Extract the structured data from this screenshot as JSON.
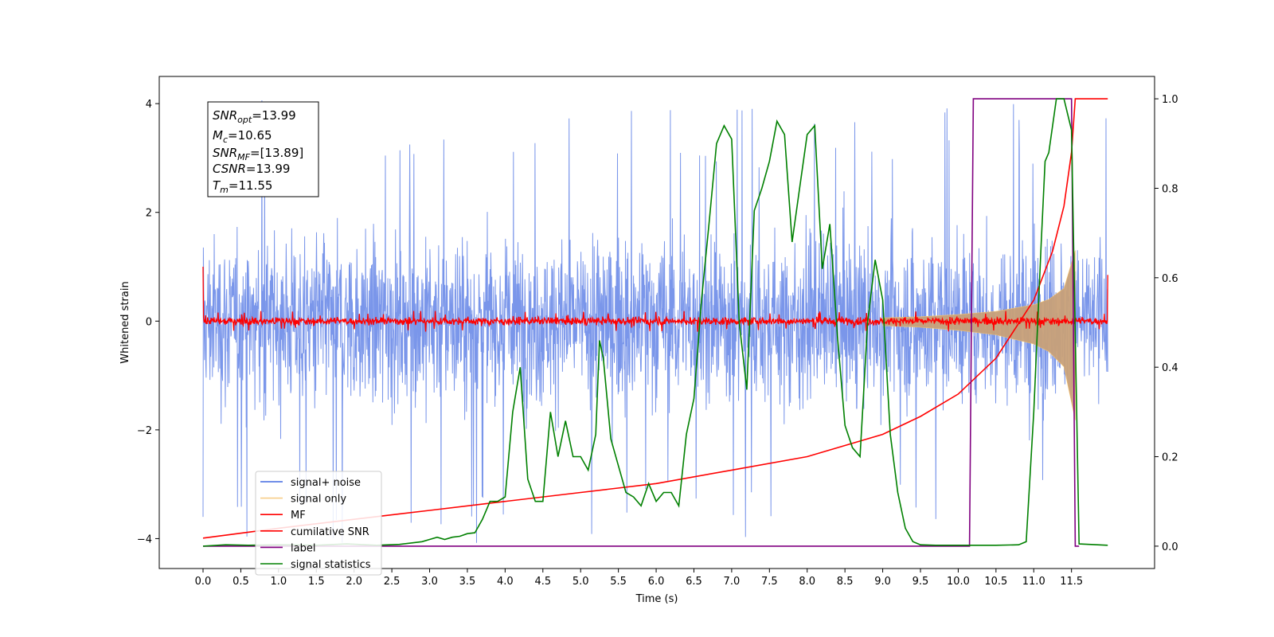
{
  "chart_data": {
    "type": "line",
    "title": "",
    "xlabel": "Time (s)",
    "ylabel": "Whitened strain",
    "y2label": "",
    "xlim": [
      -0.58,
      12.6
    ],
    "ylim": [
      -4.55,
      4.5
    ],
    "y2lim": [
      -0.05,
      1.05
    ],
    "x_ticks": [
      0.0,
      0.5,
      1.0,
      1.5,
      2.0,
      2.5,
      3.0,
      3.5,
      4.0,
      4.5,
      5.0,
      5.5,
      6.0,
      6.5,
      7.0,
      7.5,
      8.0,
      8.5,
      9.0,
      9.5,
      10.0,
      10.5,
      11.0,
      11.5
    ],
    "x_tick_labels": [
      "0.0",
      "0.5",
      "1.0",
      "1.5",
      "2.0",
      "2.5",
      "3.0",
      "3.5",
      "4.0",
      "4.5",
      "5.0",
      "5.5",
      "6.0",
      "6.5",
      "7.0",
      "7.5",
      "8.0",
      "8.5",
      "9.0",
      "9.5",
      "10.0",
      "10.5",
      "11.0",
      "11.5"
    ],
    "y_ticks": [
      -4,
      -2,
      0,
      2,
      4
    ],
    "y_tick_labels": [
      "−4",
      "−2",
      "0",
      "2",
      "4"
    ],
    "y2_ticks": [
      0.0,
      0.2,
      0.4,
      0.6,
      0.8,
      1.0
    ],
    "y2_tick_labels": [
      "0.0",
      "0.2",
      "0.4",
      "0.6",
      "0.8",
      "1.0"
    ],
    "grid": false,
    "legend_position": "lower-left",
    "info_box": {
      "snr_opt": "13.99",
      "mc": "10.65",
      "snr_mf": "[13.89]",
      "csnr": "13.99",
      "tm": "11.55"
    },
    "series": [
      {
        "name": "signal+ noise",
        "color": "#4169e1",
        "axis": "left",
        "kind": "noise_band",
        "time_range": [
          0.0,
          11.98
        ],
        "approx_envelope": [
          -2.5,
          2.5
        ],
        "approx_peak_range": [
          -4.1,
          4.1
        ]
      },
      {
        "name": "signal only",
        "color": "#f5c26b",
        "axis": "left",
        "kind": "chirp_envelope",
        "envelope": {
          "x": [
            9.0,
            9.5,
            10.0,
            10.5,
            11.0,
            11.2,
            11.4,
            11.55
          ],
          "y": [
            0.06,
            0.08,
            0.12,
            0.18,
            0.3,
            0.4,
            0.6,
            1.3
          ]
        },
        "fill_color": "#c8a078"
      },
      {
        "name": "MF",
        "color": "#ff0000",
        "axis": "left",
        "kind": "noise_band_small",
        "time_range": [
          0.0,
          11.98
        ],
        "approx_envelope": [
          -0.15,
          0.15
        ],
        "endpoints": {
          "start": 1.0,
          "end": 0.85
        }
      },
      {
        "name": "cumilative SNR",
        "color": "#ff0000",
        "axis": "right",
        "x": [
          0.0,
          1.0,
          2.0,
          3.0,
          4.0,
          5.0,
          6.0,
          7.0,
          8.0,
          9.0,
          9.5,
          10.0,
          10.5,
          11.0,
          11.25,
          11.4,
          11.5,
          11.55,
          11.98
        ],
        "y": [
          0.018,
          0.04,
          0.06,
          0.08,
          0.1,
          0.12,
          0.14,
          0.17,
          0.2,
          0.25,
          0.29,
          0.34,
          0.42,
          0.55,
          0.66,
          0.76,
          0.88,
          1.0,
          1.0
        ]
      },
      {
        "name": "label",
        "color": "#800080",
        "axis": "right",
        "x": [
          0.0,
          10.15,
          10.2,
          11.5,
          11.55,
          11.6
        ],
        "y": [
          0.0,
          0.0,
          1.0,
          1.0,
          0.0,
          0.0
        ]
      },
      {
        "name": "signal statistics",
        "color": "#008000",
        "axis": "right",
        "x": [
          0.0,
          0.3,
          0.6,
          1.0,
          1.5,
          1.9,
          2.3,
          2.6,
          2.9,
          3.0,
          3.1,
          3.2,
          3.3,
          3.4,
          3.5,
          3.6,
          3.7,
          3.8,
          3.9,
          4.0,
          4.1,
          4.2,
          4.3,
          4.4,
          4.5,
          4.6,
          4.7,
          4.8,
          4.9,
          5.0,
          5.1,
          5.2,
          5.25,
          5.3,
          5.4,
          5.5,
          5.6,
          5.7,
          5.8,
          5.9,
          6.0,
          6.1,
          6.2,
          6.3,
          6.4,
          6.5,
          6.6,
          6.7,
          6.8,
          6.9,
          7.0,
          7.1,
          7.2,
          7.3,
          7.4,
          7.5,
          7.6,
          7.7,
          7.8,
          7.9,
          8.0,
          8.1,
          8.2,
          8.3,
          8.4,
          8.5,
          8.6,
          8.7,
          8.8,
          8.9,
          9.0,
          9.1,
          9.2,
          9.3,
          9.4,
          9.5,
          9.7,
          10.0,
          10.5,
          10.8,
          10.9,
          11.0,
          11.1,
          11.15,
          11.2,
          11.3,
          11.4,
          11.5,
          11.6,
          11.98
        ],
        "y": [
          0.0,
          0.003,
          0.002,
          0.003,
          0.002,
          0.005,
          0.002,
          0.004,
          0.01,
          0.015,
          0.02,
          0.015,
          0.02,
          0.022,
          0.028,
          0.03,
          0.06,
          0.1,
          0.1,
          0.11,
          0.3,
          0.4,
          0.15,
          0.1,
          0.1,
          0.3,
          0.2,
          0.28,
          0.2,
          0.2,
          0.17,
          0.25,
          0.46,
          0.42,
          0.24,
          0.18,
          0.12,
          0.11,
          0.09,
          0.14,
          0.1,
          0.12,
          0.12,
          0.09,
          0.25,
          0.33,
          0.55,
          0.72,
          0.9,
          0.94,
          0.91,
          0.5,
          0.35,
          0.75,
          0.8,
          0.86,
          0.95,
          0.92,
          0.68,
          0.8,
          0.92,
          0.94,
          0.62,
          0.72,
          0.47,
          0.27,
          0.22,
          0.2,
          0.5,
          0.64,
          0.55,
          0.25,
          0.12,
          0.04,
          0.01,
          0.003,
          0.002,
          0.002,
          0.002,
          0.003,
          0.01,
          0.3,
          0.68,
          0.86,
          0.88,
          1.0,
          1.0,
          0.93,
          0.005,
          0.002
        ]
      }
    ]
  }
}
